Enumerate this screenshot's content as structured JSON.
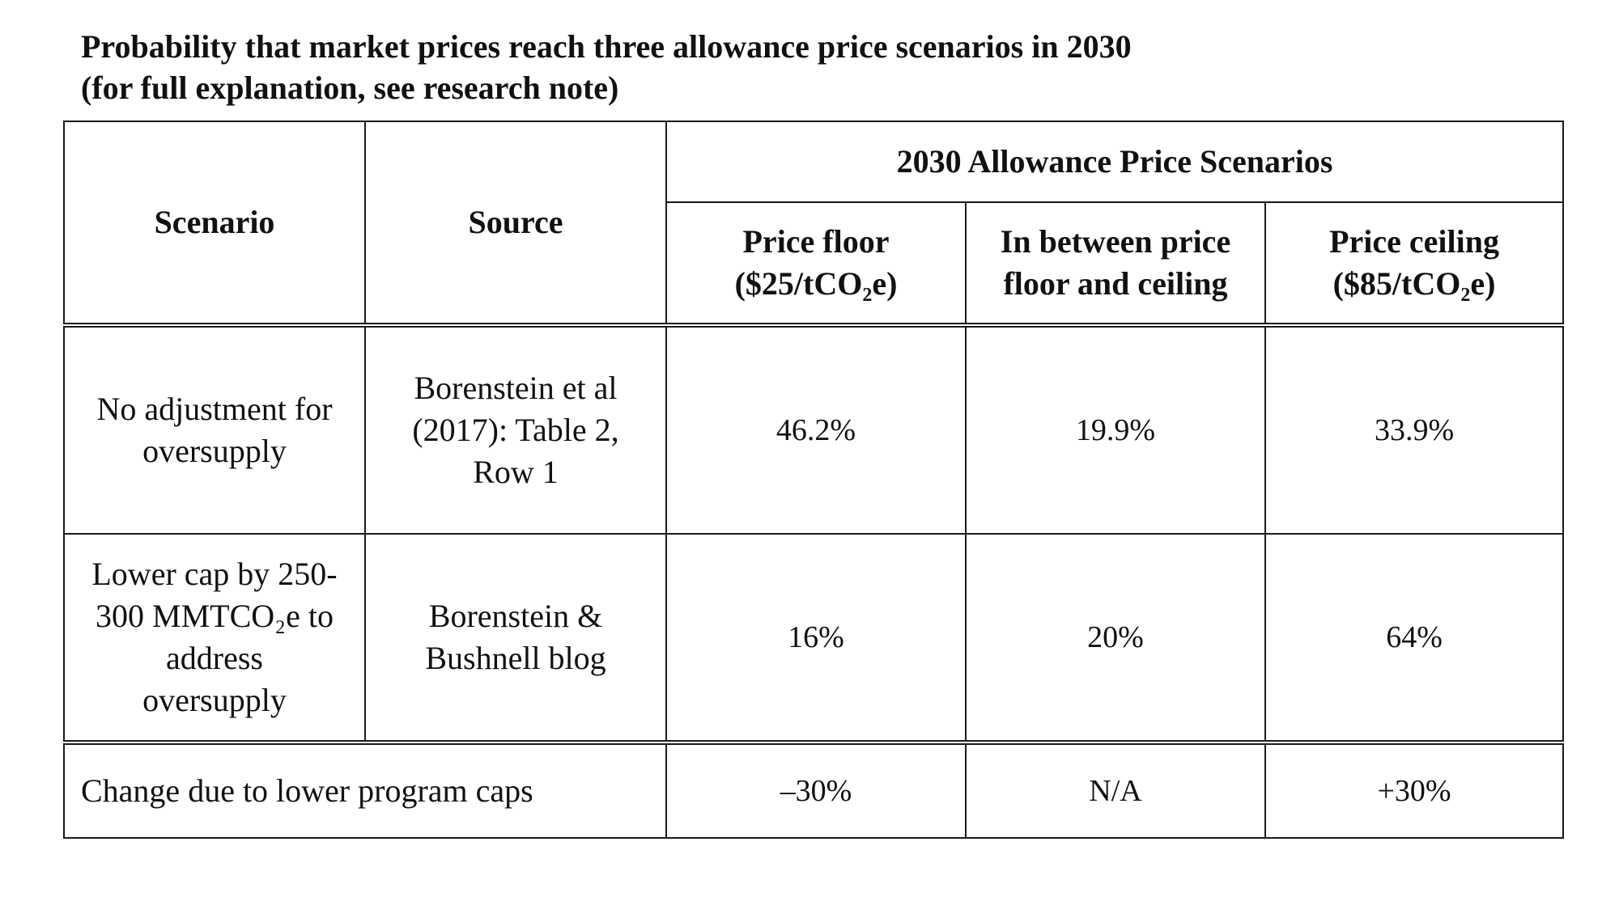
{
  "title": {
    "line1": "Probability that market prices reach three allowance price scenarios in 2030",
    "line2": "(for full explanation, see research note)"
  },
  "table": {
    "header": {
      "scenario": "Scenario",
      "source": "Source",
      "group": "2030 Allowance Price Scenarios",
      "columns": [
        {
          "line1": "Price floor",
          "line2": "($25/tCO₂e)"
        },
        {
          "line1": "In between price",
          "line2": "floor and ceiling"
        },
        {
          "line1": "Price ceiling",
          "line2": "($85/tCO₂e)"
        }
      ]
    },
    "rows": [
      {
        "scenario_lines": [
          "No adjustment for",
          "oversupply"
        ],
        "source_lines": [
          "Borenstein et al",
          "(2017): Table 2,",
          "Row 1"
        ],
        "values": [
          "46.2%",
          "19.9%",
          "33.9%"
        ]
      },
      {
        "scenario_lines": [
          "Lower cap by 250-",
          "300 MMTCO₂e to",
          "address",
          "oversupply"
        ],
        "source_lines": [
          "Borenstein &",
          "Bushnell blog"
        ],
        "values": [
          "16%",
          "20%",
          "64%"
        ]
      }
    ],
    "footer": {
      "label": "Change due to lower program caps",
      "values": [
        "–30%",
        "N/A",
        "+30%"
      ]
    }
  }
}
